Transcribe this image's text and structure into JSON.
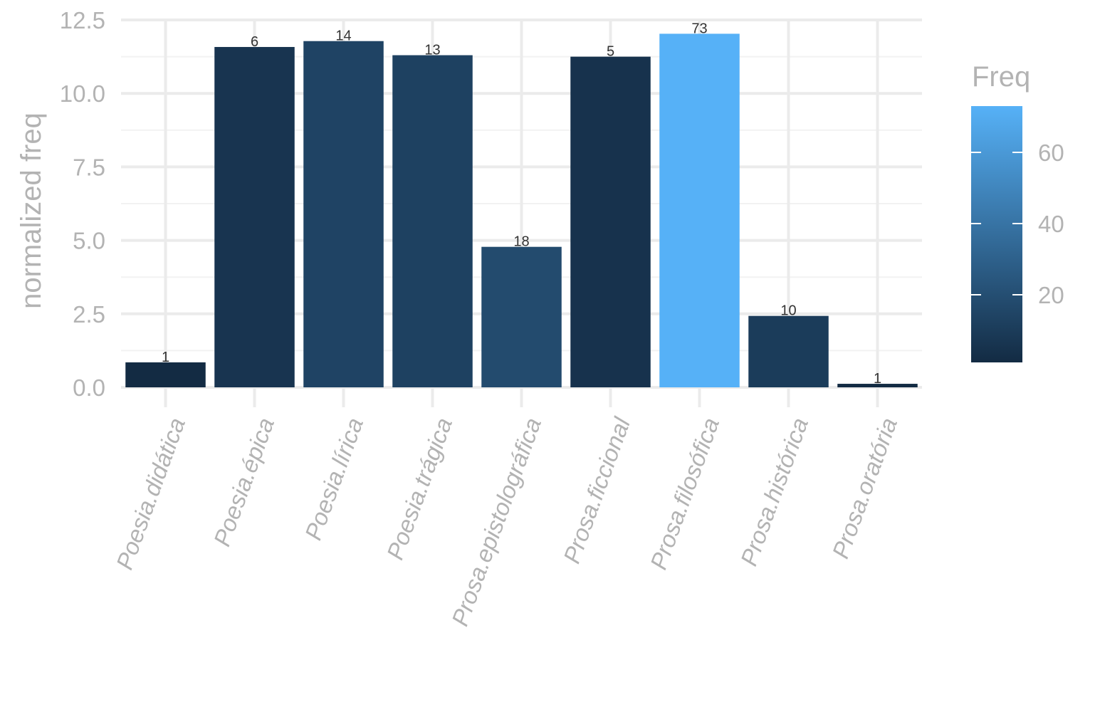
{
  "chart_data": {
    "type": "bar",
    "title": "",
    "xlabel": "",
    "ylabel": "normalized freq",
    "ylim": [
      0,
      12.5
    ],
    "yticks": [
      "0.0",
      "2.5",
      "5.0",
      "7.5",
      "10.0",
      "12.5"
    ],
    "grid": true,
    "categories": [
      "Poesia.didática",
      "Poesia.épica",
      "Poesia.lírica",
      "Poesia.trágica",
      "Prosa.epistolográfica",
      "Prosa.ficcional",
      "Prosa.filosófica",
      "Prosa.histórica",
      "Prosa.oratória"
    ],
    "values": [
      0.85,
      11.58,
      11.78,
      11.3,
      4.78,
      11.25,
      12.03,
      2.43,
      0.12
    ],
    "freq": [
      1,
      6,
      14,
      13,
      18,
      5,
      73,
      10,
      1
    ],
    "bar_labels": [
      "1",
      "6",
      "14",
      "13",
      "18",
      "5",
      "73",
      "10",
      "1"
    ],
    "legend": {
      "title": "Freq",
      "position": "right",
      "ticks": [
        "20",
        "40",
        "60"
      ],
      "range": [
        1,
        73
      ],
      "color_low": "#132B43",
      "color_high": "#56B1F7"
    }
  }
}
